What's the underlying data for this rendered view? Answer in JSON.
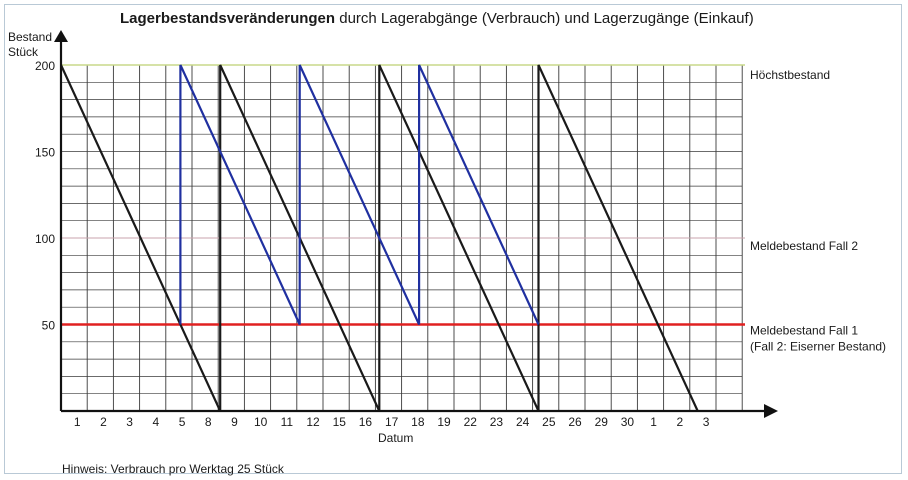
{
  "chart_data": {
    "type": "line",
    "title_bold": "Lagerbestandsveränderungen",
    "title_rest": " durch Lagerabgänge (Verbrauch) und Lagerzugänge (Einkauf)",
    "ylabel_line1": "Bestand",
    "ylabel_line2": "Stück",
    "xlabel": "Datum",
    "ylim": [
      0,
      200
    ],
    "y_ticks": [
      50,
      100,
      150,
      200
    ],
    "x_tick_labels": [
      "1",
      "2",
      "3",
      "4",
      "5",
      "8",
      "9",
      "10",
      "11",
      "12",
      "15",
      "16",
      "17",
      "18",
      "19",
      "22",
      "23",
      "24",
      "25",
      "26",
      "29",
      "30",
      "1",
      "2",
      "3"
    ],
    "grid": true,
    "reference_lines": [
      {
        "value": 200,
        "label": "Höchstbestand",
        "color": "#c8d98a"
      },
      {
        "value": 100,
        "label": "Meldebestand Fall 2",
        "color": "#c9a3ad"
      },
      {
        "value": 50,
        "label": "Meldebestand Fall 1",
        "label2": "(Fall 2: Eiserner Bestand)",
        "color": "#e02020"
      }
    ],
    "series": [
      {
        "color": "#1a1a1a",
        "points": [
          [
            0,
            200
          ],
          [
            8,
            0
          ],
          [
            8,
            200
          ],
          [
            16,
            0
          ],
          [
            16,
            200
          ],
          [
            24,
            0
          ],
          [
            24,
            200
          ],
          [
            32,
            0
          ]
        ]
      },
      {
        "color": "#2030a0",
        "points": [
          [
            6,
            50
          ],
          [
            6,
            200
          ],
          [
            12,
            50
          ],
          [
            12,
            200
          ],
          [
            18,
            50
          ],
          [
            18,
            200
          ],
          [
            24,
            50
          ]
        ]
      }
    ],
    "note": "Hinweis: Verbrauch pro Werktag 25 Stück"
  }
}
